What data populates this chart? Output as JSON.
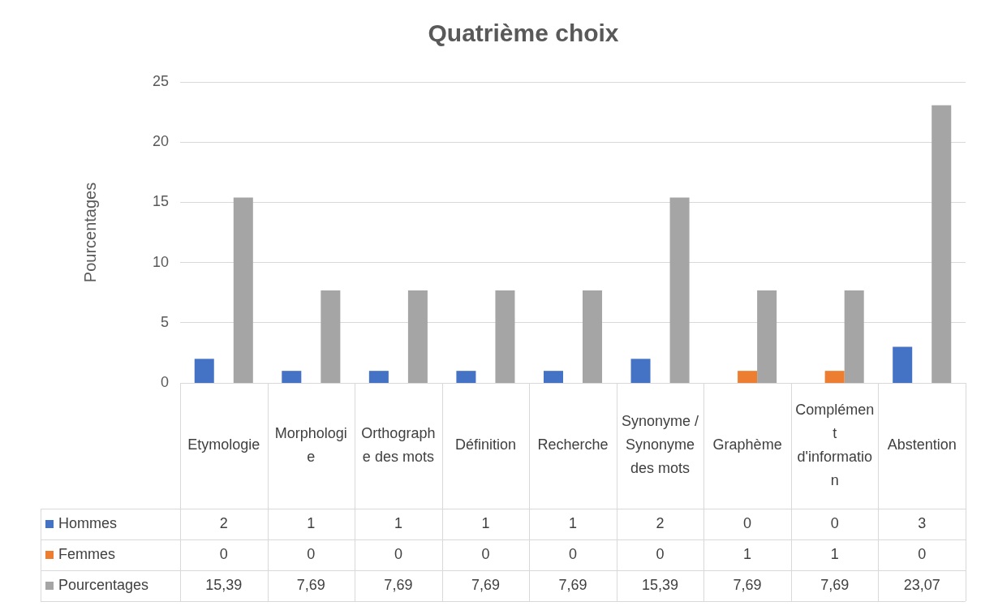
{
  "chart_data": {
    "type": "bar",
    "title": "Quatrième choix",
    "ylabel": "Pourcentages",
    "categories": [
      "Etymologie",
      "Morphologie",
      "Orthographe des mots",
      "Définition",
      "Recherche",
      "Synonyme / Synonyme des mots",
      "Graphème",
      "Complément d'information",
      "Abstention"
    ],
    "series": [
      {
        "name": "Hommes",
        "color": "#4472c4",
        "values": [
          2,
          1,
          1,
          1,
          1,
          2,
          0,
          0,
          3
        ],
        "value_labels": [
          "2",
          "1",
          "1",
          "1",
          "1",
          "2",
          "0",
          "0",
          "3"
        ]
      },
      {
        "name": "Femmes",
        "color": "#ed7d31",
        "values": [
          0,
          0,
          0,
          0,
          0,
          0,
          1,
          1,
          0
        ],
        "value_labels": [
          "0",
          "0",
          "0",
          "0",
          "0",
          "0",
          "1",
          "1",
          "0"
        ]
      },
      {
        "name": "Pourcentages",
        "color": "#a5a5a5",
        "values": [
          15.39,
          7.69,
          7.69,
          7.69,
          7.69,
          15.39,
          7.69,
          7.69,
          23.07
        ],
        "value_labels": [
          "15,39",
          "7,69",
          "7,69",
          "7,69",
          "7,69",
          "15,39",
          "7,69",
          "7,69",
          "23,07"
        ]
      }
    ],
    "ylim": [
      0,
      25
    ],
    "yticks": [
      0,
      5,
      10,
      15,
      20,
      25
    ],
    "grid": "y",
    "legend": "bottom"
  }
}
